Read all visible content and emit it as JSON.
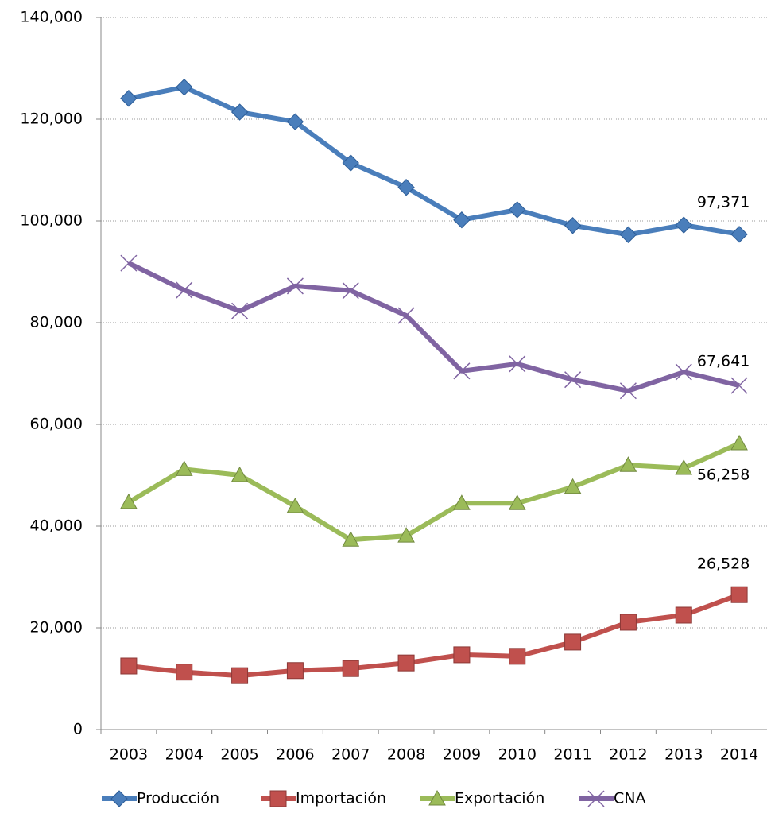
{
  "chart_data": {
    "type": "line",
    "categories": [
      "2003",
      "2004",
      "2005",
      "2006",
      "2007",
      "2008",
      "2009",
      "2010",
      "2011",
      "2012",
      "2013",
      "2014"
    ],
    "series": [
      {
        "name": "Producción",
        "color": "#4a7ebb",
        "marker": "diamond",
        "values": [
          124100,
          126300,
          121400,
          119500,
          111400,
          106600,
          100200,
          102200,
          99100,
          97300,
          99200,
          97371
        ],
        "value_labels": [
          null,
          null,
          null,
          null,
          null,
          null,
          null,
          null,
          null,
          null,
          null,
          "97,371"
        ]
      },
      {
        "name": "Importación",
        "color": "#c0504d",
        "marker": "square",
        "values": [
          12500,
          11300,
          10600,
          11600,
          12000,
          13100,
          14700,
          14400,
          17200,
          21100,
          22500,
          26528
        ],
        "value_labels": [
          null,
          null,
          null,
          null,
          null,
          null,
          null,
          null,
          null,
          null,
          null,
          "26,528"
        ]
      },
      {
        "name": "Exportación",
        "color": "#9bbb59",
        "marker": "triangle",
        "values": [
          44700,
          51200,
          50000,
          43900,
          37300,
          38100,
          44500,
          44500,
          47700,
          52000,
          51400,
          56258
        ],
        "value_labels": [
          null,
          null,
          null,
          null,
          null,
          null,
          null,
          null,
          null,
          null,
          null,
          "56,258"
        ]
      },
      {
        "name": "CNA",
        "color": "#8064a2",
        "marker": "x",
        "values": [
          91700,
          86400,
          82300,
          87200,
          86300,
          81400,
          70500,
          71900,
          68800,
          66600,
          70300,
          67641
        ],
        "value_labels": [
          null,
          null,
          null,
          null,
          null,
          null,
          null,
          null,
          null,
          null,
          null,
          "67,641"
        ]
      }
    ],
    "ylim": [
      0,
      140000
    ],
    "yticks": [
      0,
      {
        "value": 20000,
        "label": "20,000"
      },
      {
        "value": 40000,
        "label": "40,000"
      },
      {
        "value": 60000,
        "label": "60,000"
      },
      {
        "value": 80000,
        "label": "80,000"
      },
      {
        "value": 100000,
        "label": "100,000"
      },
      {
        "value": 120000,
        "label": "120,000"
      },
      {
        "value": 140000,
        "label": "140,000"
      }
    ],
    "grid": true,
    "legend": "bottom"
  }
}
